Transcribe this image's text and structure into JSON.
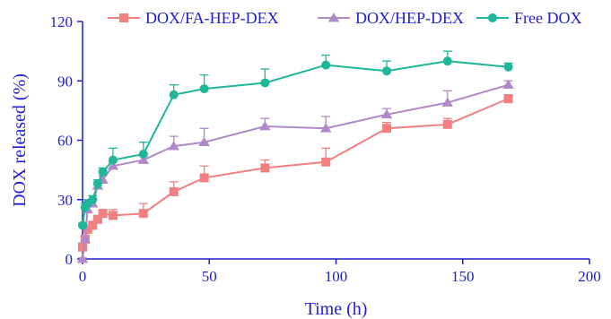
{
  "chart_data": {
    "type": "line",
    "title": "",
    "xlabel": "Time (h)",
    "ylabel": "DOX released (%)",
    "xlim": [
      0,
      200
    ],
    "ylim": [
      0,
      120
    ],
    "xticks": [
      0,
      50,
      100,
      150,
      200
    ],
    "yticks": [
      0,
      30,
      60,
      90,
      120
    ],
    "xtick_labels": [
      "0",
      "50",
      "100",
      "150",
      "200"
    ],
    "ytick_labels": [
      "0",
      "30",
      "60",
      "90",
      "120"
    ],
    "grid": false,
    "legend_position": "top",
    "axis_color": "#1f1fd0",
    "series": [
      {
        "name": "DOX/FA-HEP-DEX",
        "color": "#f28080",
        "marker": "square",
        "x": [
          0,
          1,
          2,
          4,
          6,
          8,
          12,
          24,
          36,
          48,
          72,
          96,
          120,
          144,
          168
        ],
        "y": [
          6,
          10,
          15,
          17,
          20,
          23,
          22,
          23,
          34,
          41,
          46,
          49,
          66,
          68,
          81
        ],
        "err": [
          1,
          2,
          2,
          2,
          2,
          2,
          3,
          5,
          5,
          6,
          4,
          7,
          3,
          3,
          2
        ]
      },
      {
        "name": "DOX/HEP-DEX",
        "color": "#b08ac8",
        "marker": "triangle",
        "x": [
          0,
          1,
          2,
          4,
          6,
          8,
          12,
          24,
          36,
          48,
          72,
          96,
          120,
          144,
          168
        ],
        "y": [
          0,
          10,
          25,
          28,
          37,
          40,
          47,
          50,
          57,
          59,
          67,
          66,
          73,
          79,
          88
        ],
        "err": [
          0.5,
          1.5,
          2,
          2,
          2,
          2,
          2,
          2,
          5,
          7,
          4,
          6,
          3,
          6,
          2
        ]
      },
      {
        "name": "Free DOX",
        "color": "#1fb69a",
        "marker": "circle",
        "x": [
          0,
          1,
          2,
          4,
          6,
          8,
          12,
          24,
          36,
          48,
          72,
          96,
          120,
          144,
          168
        ],
        "y": [
          17,
          26,
          28,
          30,
          38,
          44,
          50,
          53,
          83,
          86,
          89,
          98,
          95,
          100,
          97
        ],
        "err": [
          1,
          2,
          2,
          2,
          2,
          2,
          6,
          6,
          5,
          7,
          7,
          5,
          5,
          5,
          2
        ]
      }
    ]
  }
}
